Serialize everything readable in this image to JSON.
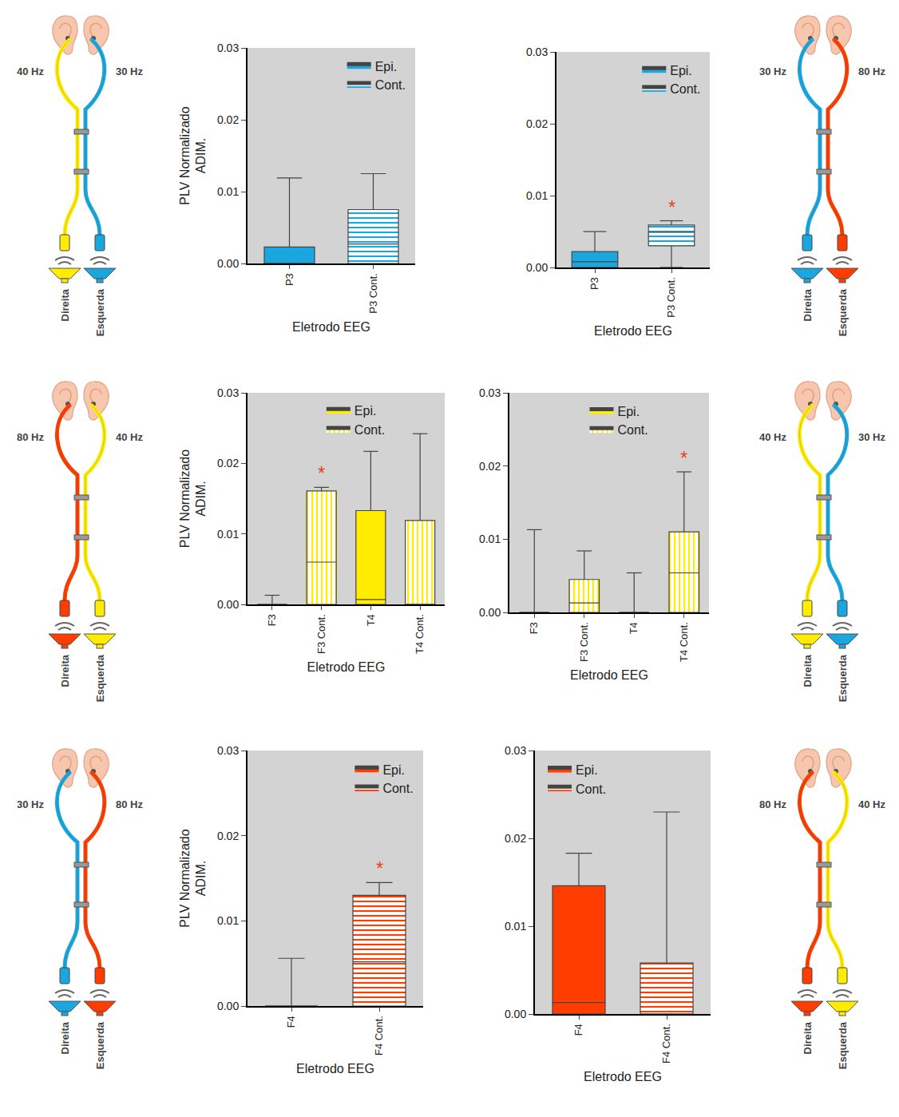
{
  "chart_data": [
    {
      "type": "box",
      "ylabel": "PLV Normalizado ADIM.",
      "xlabel": "Eletrodo EEG",
      "categories": [
        "P3",
        "P3 Cont."
      ],
      "ylim": [
        0,
        0.03
      ],
      "yticks": [
        {
          "value": 0,
          "label": "0.00"
        },
        0.01,
        0.02,
        0.03
      ],
      "grid": false,
      "legend": "top right",
      "series": [
        {
          "name": "Epi.",
          "color": "#1aa7e0",
          "marker": "solid",
          "boxes": [
            {
              "low": 0,
              "q1": 0,
              "median": 0,
              "q3": 0.0023,
              "high": 0.0119
            },
            null
          ]
        },
        {
          "name": "Cont.",
          "color": "#1aa7e0",
          "marker": "hatch_horizontal",
          "boxes": [
            null,
            {
              "low": 0,
              "q1": 0,
              "median": 0.0027,
              "q3": 0.0075,
              "high": 0.0125
            }
          ]
        }
      ],
      "annotations": []
    },
    {
      "type": "box",
      "xlabel": "Eletrodo EEG",
      "categories": [
        "P3",
        "P3 Cont."
      ],
      "ylim": [
        0,
        0.03
      ],
      "yticks": [
        {
          "value": 0,
          "label": "0.00"
        },
        0.01,
        0.02,
        0.03
      ],
      "grid": false,
      "legend": "top right",
      "series": [
        {
          "name": "Epi.",
          "color": "#1aa7e0",
          "marker": "solid",
          "boxes": [
            {
              "low": 0,
              "q1": 0,
              "median": 0.0008,
              "q3": 0.0022,
              "high": 0.005
            },
            null
          ]
        },
        {
          "name": "Cont.",
          "color": "#1aa7e0",
          "marker": "hatch_horizontal",
          "boxes": [
            null,
            {
              "low": 0,
              "q1": 0.003,
              "median": 0.0049,
              "q3": 0.0059,
              "high": 0.0065
            }
          ]
        }
      ],
      "annotations": [
        {
          "category": "P3 Cont.",
          "text": "*"
        }
      ]
    },
    {
      "type": "box",
      "ylabel": "PLV Normalizado ADIM.",
      "xlabel": "Eletrodo EEG",
      "categories": [
        "F3",
        "F3 Cont.",
        "T4",
        "T4 Cont."
      ],
      "ylim": [
        0,
        0.03
      ],
      "yticks": [
        {
          "value": 0,
          "label": "0.00"
        },
        0.01,
        0.02,
        0.03
      ],
      "grid": false,
      "legend": "top",
      "series": [
        {
          "name": "Epi.",
          "color": "#ffec00",
          "marker": "solid",
          "boxes": [
            {
              "low": 0,
              "q1": 0,
              "median": 0,
              "q3": 0,
              "high": 0.0013
            },
            null,
            {
              "low": 0,
              "q1": 0,
              "median": 0.0007,
              "q3": 0.0133,
              "high": 0.0217
            },
            null
          ]
        },
        {
          "name": "Cont.",
          "color": "#ffec00",
          "marker": "hatch_vertical",
          "boxes": [
            null,
            {
              "low": 0,
              "q1": 0,
              "median": 0.006,
              "q3": 0.0161,
              "high": 0.0166
            },
            null,
            {
              "low": 0,
              "q1": 0,
              "median": 0,
              "q3": 0.0119,
              "high": 0.0242
            }
          ]
        }
      ],
      "annotations": [
        {
          "category": "F3 Cont.",
          "text": "*"
        }
      ]
    },
    {
      "type": "box",
      "xlabel": "Eletrodo EEG",
      "categories": [
        "F3",
        "F3 Cont.",
        "T4",
        "T4 Cont."
      ],
      "ylim": [
        0,
        0.03
      ],
      "yticks": [
        {
          "value": 0,
          "label": "0.00"
        },
        0.01,
        0.02,
        0.03
      ],
      "grid": false,
      "legend": "top",
      "series": [
        {
          "name": "Epi.",
          "color": "#ffec00",
          "marker": "solid",
          "boxes": [
            {
              "low": 0,
              "q1": 0,
              "median": 0,
              "q3": 0,
              "high": 0.0113
            },
            null,
            {
              "low": 0,
              "q1": 0,
              "median": 0,
              "q3": 0,
              "high": 0.0054
            },
            null
          ]
        },
        {
          "name": "Cont.",
          "color": "#ffec00",
          "marker": "hatch_vertical",
          "boxes": [
            null,
            {
              "low": 0,
              "q1": 0,
              "median": 0.0013,
              "q3": 0.0045,
              "high": 0.0084
            },
            null,
            {
              "low": 0,
              "q1": 0,
              "median": 0.0054,
              "q3": 0.011,
              "high": 0.0192
            }
          ]
        }
      ],
      "annotations": [
        {
          "category": "T4 Cont.",
          "text": "*"
        }
      ]
    },
    {
      "type": "box",
      "ylabel": "PLV Normalizado ADIM.",
      "xlabel": "Eletrodo EEG",
      "categories": [
        "F4",
        "F4 Cont."
      ],
      "ylim": [
        0,
        0.03
      ],
      "yticks": [
        {
          "value": 0,
          "label": "0.00"
        },
        0.01,
        0.02,
        0.03
      ],
      "grid": false,
      "legend": "top right",
      "series": [
        {
          "name": "Epi.",
          "color": "#ff3d00",
          "marker": "solid",
          "boxes": [
            {
              "low": 0,
              "q1": 0,
              "median": 0,
              "q3": 0,
              "high": 0.0056
            },
            null
          ]
        },
        {
          "name": "Cont.",
          "color": "#ff3d00",
          "marker": "hatch_horizontal",
          "boxes": [
            null,
            {
              "low": 0,
              "q1": 0,
              "median": 0.0052,
              "q3": 0.013,
              "high": 0.0145
            }
          ]
        }
      ],
      "annotations": [
        {
          "category": "F4 Cont.",
          "text": "*"
        }
      ]
    },
    {
      "type": "box",
      "xlabel": "Eletrodo EEG",
      "categories": [
        "F4",
        "F4 Cont."
      ],
      "ylim": [
        0,
        0.03
      ],
      "yticks": [
        {
          "value": 0,
          "label": "0.00"
        },
        0.01,
        0.02,
        0.03
      ],
      "grid": false,
      "legend": "top left",
      "series": [
        {
          "name": "Epi.",
          "color": "#ff3d00",
          "marker": "solid",
          "boxes": [
            {
              "low": 0,
              "q1": 0,
              "median": 0.0013,
              "q3": 0.0146,
              "high": 0.0183
            },
            null
          ]
        },
        {
          "name": "Cont.",
          "color": "#ff3d00",
          "marker": "hatch_horizontal",
          "boxes": [
            null,
            {
              "low": 0,
              "q1": 0,
              "median": 0,
              "q3": 0.0058,
              "high": 0.023
            }
          ]
        }
      ],
      "annotations": []
    }
  ],
  "diagrams": [
    {
      "left_freq": "40 Hz",
      "right_freq": "30 Hz",
      "left_color": "#ffec00",
      "right_color": "#1aa7e0",
      "left_speaker": "Direita",
      "right_speaker": "Esquerda"
    },
    {
      "left_freq": "30 Hz",
      "right_freq": "80 Hz",
      "left_color": "#1aa7e0",
      "right_color": "#ff3d00",
      "left_speaker": "Direita",
      "right_speaker": "Esquerda"
    },
    {
      "left_freq": "80 Hz",
      "right_freq": "40 Hz",
      "left_color": "#ff3d00",
      "right_color": "#ffec00",
      "left_speaker": "Direita",
      "right_speaker": "Esquerda"
    },
    {
      "left_freq": "40 Hz",
      "right_freq": "30 Hz",
      "left_color": "#ffec00",
      "right_color": "#1aa7e0",
      "left_speaker": "Direita",
      "right_speaker": "Esquerda"
    },
    {
      "left_freq": "30 Hz",
      "right_freq": "80 Hz",
      "left_color": "#1aa7e0",
      "right_color": "#ff3d00",
      "left_speaker": "Direita",
      "right_speaker": "Esquerda"
    },
    {
      "left_freq": "80 Hz",
      "right_freq": "40 Hz",
      "left_color": "#ff3d00",
      "right_color": "#ffec00",
      "left_speaker": "Direita",
      "right_speaker": "Esquerda"
    }
  ]
}
